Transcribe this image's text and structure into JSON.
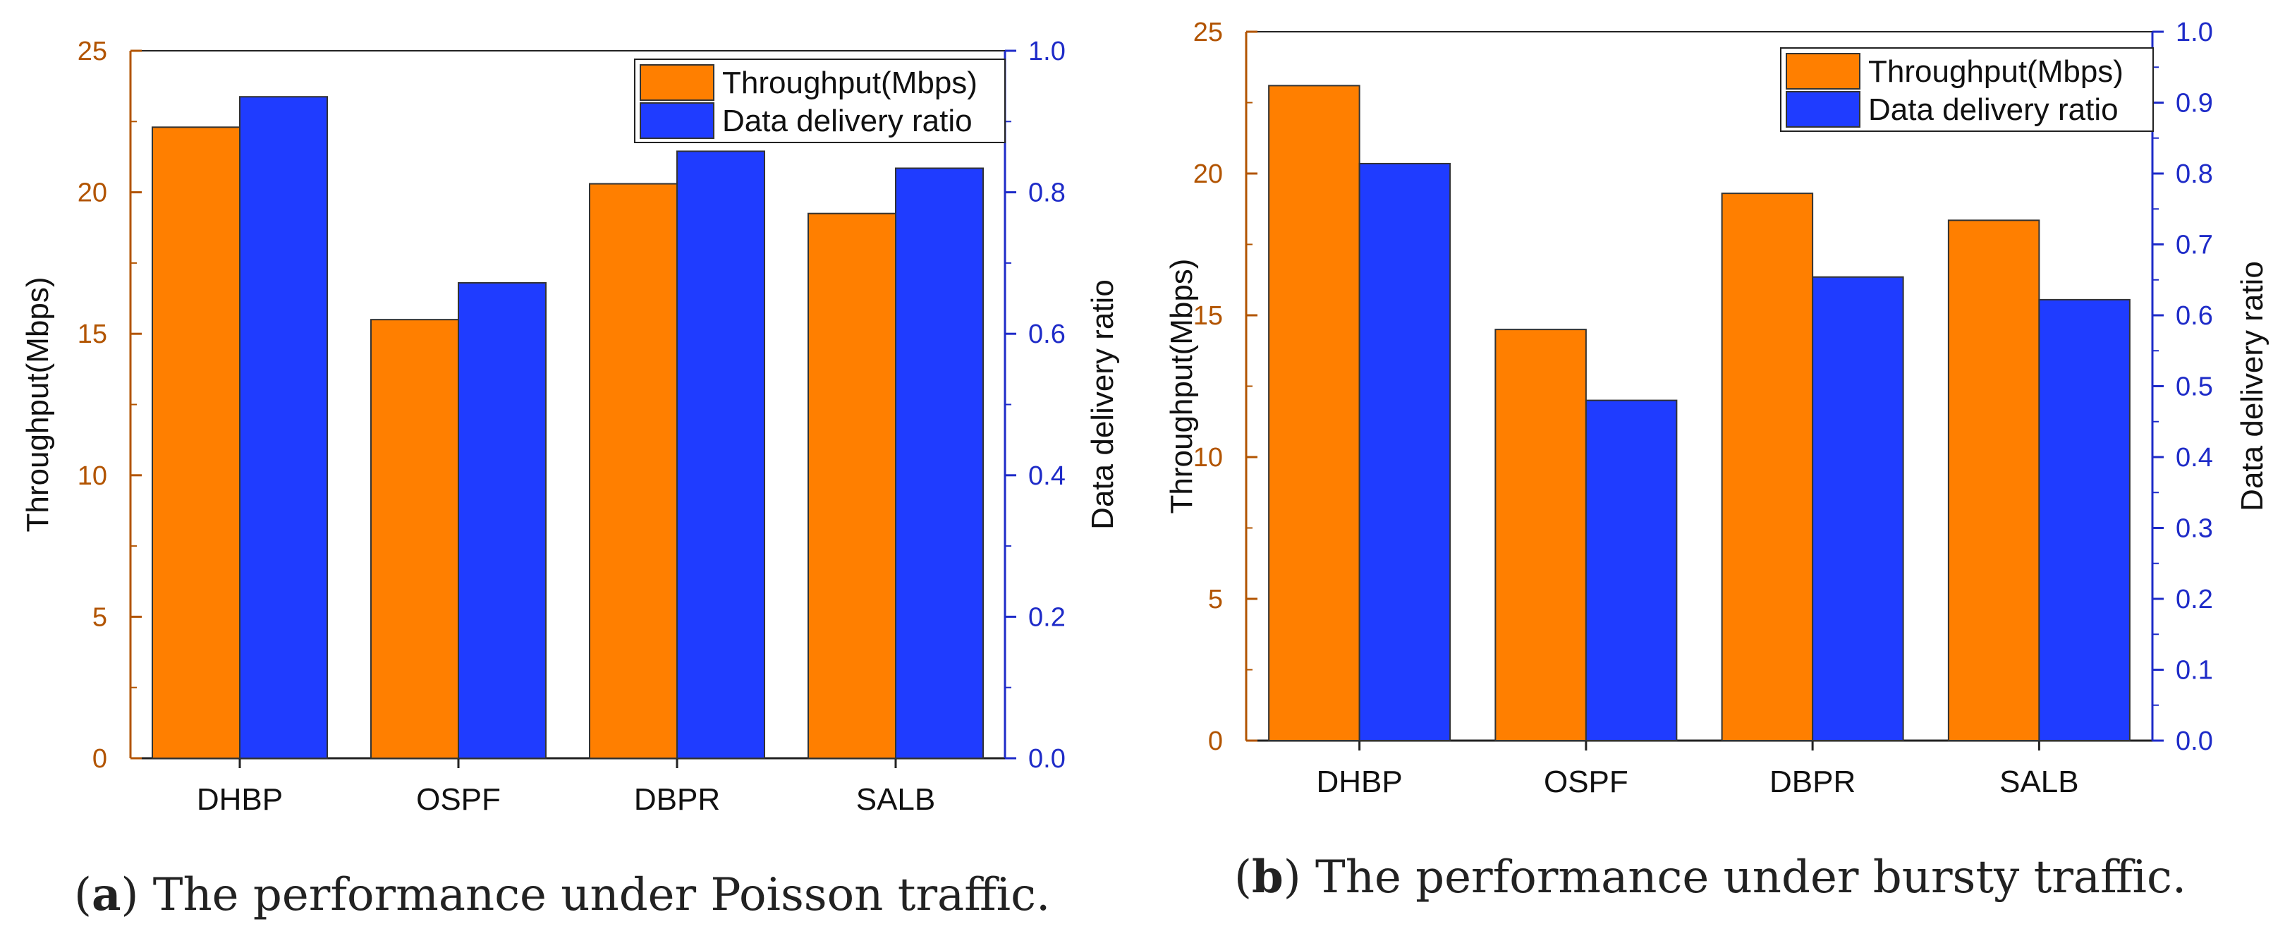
{
  "colors": {
    "throughput": "#ff7f00",
    "delivery": "#1f3cff",
    "left_axis": "#b25400",
    "right_axis": "#1e2bc8"
  },
  "chart_data": [
    {
      "type": "bar",
      "panel": "a",
      "caption_key": "a",
      "caption_text": " The performance under Poisson traffic.",
      "categories": [
        "DHBP",
        "OSPF",
        "DBPR",
        "SALB"
      ],
      "series": [
        {
          "name": "Throughput(Mbps)",
          "axis": "left",
          "values": [
            22.3,
            15.5,
            20.3,
            19.25
          ]
        },
        {
          "name": "Data delivery ratio",
          "axis": "right",
          "values": [
            0.935,
            0.672,
            0.858,
            0.834
          ]
        }
      ],
      "ylabel_left": "Throughput(Mbps)",
      "ylabel_right": "Data delivery ratio",
      "ylim_left": [
        0,
        25
      ],
      "ylim_right": [
        0,
        1.0
      ],
      "yticks_left": [
        "0",
        "5",
        "10",
        "15",
        "20",
        "25"
      ],
      "yticks_right": [
        "0.0",
        "0.2",
        "0.4",
        "0.6",
        "0.8",
        "1.0"
      ],
      "legend_position": "top-right"
    },
    {
      "type": "bar",
      "panel": "b",
      "caption_key": "b",
      "caption_text": " The performance under bursty traffic.",
      "categories": [
        "DHBP",
        "OSPF",
        "DBPR",
        "SALB"
      ],
      "series": [
        {
          "name": "Throughput(Mbps)",
          "axis": "left",
          "values": [
            23.1,
            14.5,
            19.3,
            18.35
          ]
        },
        {
          "name": "Data delivery ratio",
          "axis": "right",
          "values": [
            0.814,
            0.48,
            0.654,
            0.622
          ]
        }
      ],
      "ylabel_left": "Throughput(Mbps)",
      "ylabel_right": "Data delivery ratio",
      "ylim_left": [
        0,
        25
      ],
      "ylim_right": [
        0,
        1.0
      ],
      "yticks_left": [
        "0",
        "5",
        "10",
        "15",
        "20",
        "25"
      ],
      "yticks_right": [
        "0.0",
        "0.1",
        "0.2",
        "0.3",
        "0.4",
        "0.5",
        "0.6",
        "0.7",
        "0.8",
        "0.9",
        "1.0"
      ],
      "legend_position": "top-right"
    }
  ]
}
